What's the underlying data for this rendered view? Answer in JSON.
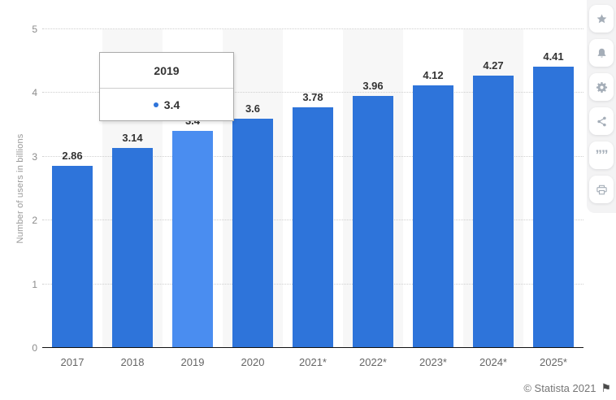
{
  "chart_data": {
    "type": "bar",
    "title": "",
    "xlabel": "",
    "ylabel": "Number of users in billions",
    "categories": [
      "2017",
      "2018",
      "2019",
      "2020",
      "2021*",
      "2022*",
      "2023*",
      "2024*",
      "2025*"
    ],
    "values": [
      2.86,
      3.14,
      3.4,
      3.6,
      3.78,
      3.96,
      4.12,
      4.27,
      4.41
    ],
    "ylim": [
      0,
      5
    ],
    "yticks": [
      0,
      1,
      2,
      3,
      4,
      5
    ],
    "grid": "horizontal-dotted",
    "legend": "none",
    "highlighted_category": "2019",
    "colors": {
      "bar": "#2e74da",
      "bar_highlighted": "#4a8df0",
      "alt_column_band": "#f7f7f7",
      "value_label": "#333333",
      "axis_label": "#666666"
    }
  },
  "tooltip": {
    "title": "2019",
    "value": "3.4",
    "marker_color": "#2e74da"
  },
  "sidebar": {
    "buttons": [
      {
        "id": "favorite",
        "icon": "star-icon"
      },
      {
        "id": "notifications",
        "icon": "bell-icon"
      },
      {
        "id": "settings",
        "icon": "gear-icon"
      },
      {
        "id": "share",
        "icon": "share-icon"
      },
      {
        "id": "cite",
        "icon": "quote-icon"
      },
      {
        "id": "print",
        "icon": "print-icon"
      }
    ],
    "quote_glyph": "””"
  },
  "footer": {
    "copyright": "© Statista 2021",
    "flag_glyph": "⚑"
  }
}
